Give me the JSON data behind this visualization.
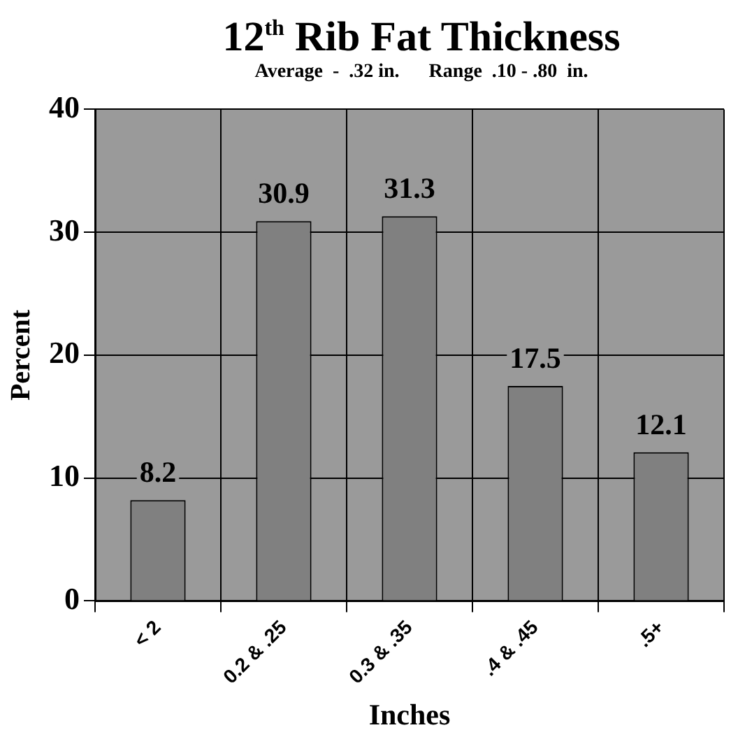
{
  "chart_data": {
    "type": "bar",
    "title": "12$^{th}$ Rib Fat Thickness",
    "subtitle": "Average  -  .32 in.      Range  .10 - .80  in.",
    "categories": [
      "< 2",
      "0.2 & .25",
      "0.3 & .35",
      ".4 & .45",
      ".5+"
    ],
    "values": [
      8.2,
      30.9,
      31.3,
      17.5,
      12.1
    ],
    "color": "#808080",
    "xlabel": "Inches",
    "ylabel": "Percent",
    "ylim": [
      0,
      40
    ],
    "yticks": [
      0,
      10,
      20,
      30,
      40
    ],
    "grid": true,
    "data_labels": true
  }
}
